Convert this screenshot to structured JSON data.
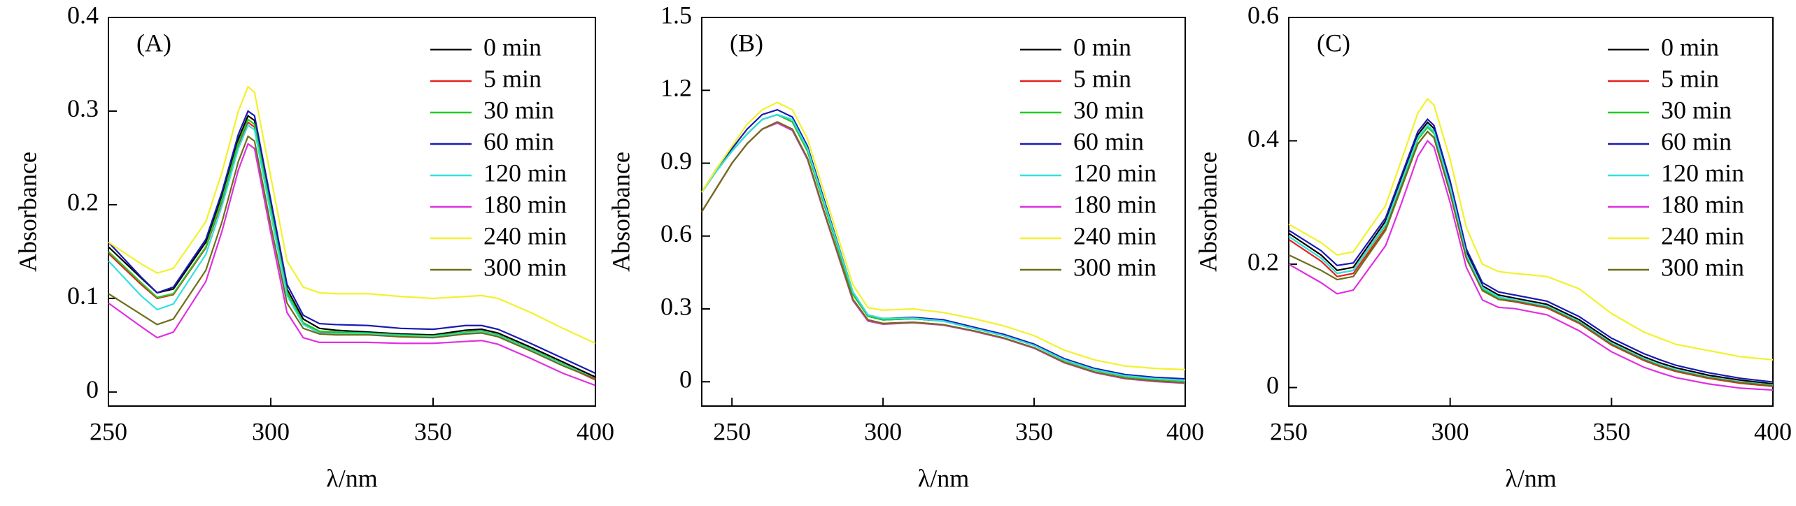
{
  "chart_data": [
    {
      "type": "line",
      "title": "(A)",
      "xlabel": "λ/nm",
      "ylabel": "Absorbance",
      "xlim": [
        250,
        400
      ],
      "xticks": [
        250,
        300,
        350,
        400
      ],
      "ylim": [
        -0.015,
        0.4
      ],
      "yticks": [
        0,
        0.1,
        0.2,
        0.3,
        0.4
      ],
      "x": [
        250,
        260,
        265,
        270,
        280,
        285,
        290,
        293,
        295,
        300,
        305,
        310,
        315,
        320,
        330,
        340,
        350,
        360,
        365,
        370,
        380,
        390,
        400
      ],
      "series": [
        {
          "name": "0 min",
          "color": "#000000",
          "values": [
            0.155,
            0.122,
            0.106,
            0.11,
            0.16,
            0.21,
            0.27,
            0.295,
            0.29,
            0.2,
            0.11,
            0.078,
            0.068,
            0.066,
            0.064,
            0.062,
            0.061,
            0.066,
            0.067,
            0.063,
            0.048,
            0.032,
            0.016
          ]
        },
        {
          "name": "5 min",
          "color": "#e62020",
          "values": [
            0.148,
            0.115,
            0.1,
            0.104,
            0.154,
            0.204,
            0.263,
            0.288,
            0.283,
            0.193,
            0.105,
            0.073,
            0.064,
            0.063,
            0.062,
            0.06,
            0.059,
            0.063,
            0.064,
            0.06,
            0.045,
            0.029,
            0.013
          ]
        },
        {
          "name": "30 min",
          "color": "#22cc22",
          "values": [
            0.15,
            0.117,
            0.101,
            0.105,
            0.155,
            0.206,
            0.266,
            0.291,
            0.286,
            0.196,
            0.107,
            0.074,
            0.065,
            0.064,
            0.063,
            0.061,
            0.06,
            0.064,
            0.065,
            0.061,
            0.046,
            0.03,
            0.014
          ]
        },
        {
          "name": "60 min",
          "color": "#1a1ab4",
          "values": [
            0.16,
            0.123,
            0.106,
            0.112,
            0.163,
            0.214,
            0.275,
            0.3,
            0.295,
            0.205,
            0.115,
            0.082,
            0.073,
            0.072,
            0.071,
            0.068,
            0.067,
            0.071,
            0.071,
            0.067,
            0.052,
            0.036,
            0.02
          ]
        },
        {
          "name": "120 min",
          "color": "#33e0e0",
          "values": [
            0.14,
            0.103,
            0.088,
            0.094,
            0.147,
            0.199,
            0.26,
            0.285,
            0.28,
            0.19,
            0.103,
            0.072,
            0.063,
            0.062,
            0.062,
            0.06,
            0.059,
            0.063,
            0.064,
            0.06,
            0.045,
            0.029,
            0.014
          ]
        },
        {
          "name": "180 min",
          "color": "#e030e0",
          "values": [
            0.095,
            0.07,
            0.058,
            0.064,
            0.118,
            0.172,
            0.237,
            0.265,
            0.26,
            0.17,
            0.085,
            0.058,
            0.053,
            0.053,
            0.053,
            0.052,
            0.052,
            0.054,
            0.055,
            0.051,
            0.036,
            0.02,
            0.007
          ]
        },
        {
          "name": "240 min",
          "color": "#f2f22a",
          "values": [
            0.16,
            0.137,
            0.127,
            0.132,
            0.182,
            0.235,
            0.3,
            0.326,
            0.32,
            0.23,
            0.14,
            0.112,
            0.106,
            0.105,
            0.105,
            0.102,
            0.1,
            0.102,
            0.103,
            0.1,
            0.085,
            0.068,
            0.052
          ]
        },
        {
          "name": "300 min",
          "color": "#6e6e18",
          "values": [
            0.105,
            0.083,
            0.072,
            0.078,
            0.13,
            0.182,
            0.246,
            0.273,
            0.268,
            0.178,
            0.095,
            0.068,
            0.062,
            0.061,
            0.061,
            0.059,
            0.058,
            0.062,
            0.063,
            0.059,
            0.044,
            0.028,
            0.014
          ]
        }
      ]
    },
    {
      "type": "line",
      "title": "(B)",
      "xlabel": "λ/nm",
      "ylabel": "Absorbance",
      "xlim": [
        240,
        400
      ],
      "xticks": [
        250,
        300,
        350,
        400
      ],
      "ylim": [
        -0.1,
        1.5
      ],
      "yticks": [
        0,
        0.3,
        0.6,
        0.9,
        1.2,
        1.5
      ],
      "x": [
        240,
        245,
        250,
        255,
        260,
        265,
        270,
        275,
        280,
        290,
        295,
        300,
        310,
        320,
        330,
        340,
        350,
        360,
        370,
        380,
        390,
        400
      ],
      "series": [
        {
          "name": "0 min",
          "color": "#000000",
          "values": [
            0.78,
            0.87,
            0.95,
            1.02,
            1.08,
            1.1,
            1.07,
            0.95,
            0.75,
            0.36,
            0.27,
            0.255,
            0.26,
            0.25,
            0.22,
            0.19,
            0.15,
            0.09,
            0.05,
            0.025,
            0.012,
            0.005
          ]
        },
        {
          "name": "5 min",
          "color": "#e62020",
          "values": [
            0.7,
            0.8,
            0.9,
            0.98,
            1.04,
            1.07,
            1.04,
            0.92,
            0.72,
            0.34,
            0.255,
            0.24,
            0.245,
            0.235,
            0.21,
            0.18,
            0.14,
            0.08,
            0.04,
            0.015,
            0.003,
            -0.005
          ]
        },
        {
          "name": "30 min",
          "color": "#22cc22",
          "values": [
            0.78,
            0.87,
            0.95,
            1.02,
            1.08,
            1.1,
            1.07,
            0.95,
            0.75,
            0.36,
            0.27,
            0.255,
            0.26,
            0.25,
            0.22,
            0.19,
            0.15,
            0.088,
            0.048,
            0.022,
            0.01,
            0.003
          ]
        },
        {
          "name": "60 min",
          "color": "#1a1ab4",
          "values": [
            0.78,
            0.88,
            0.96,
            1.04,
            1.1,
            1.12,
            1.09,
            0.97,
            0.77,
            0.37,
            0.275,
            0.26,
            0.265,
            0.255,
            0.225,
            0.195,
            0.155,
            0.095,
            0.055,
            0.03,
            0.018,
            0.012
          ]
        },
        {
          "name": "120 min",
          "color": "#33e0e0",
          "values": [
            0.78,
            0.87,
            0.95,
            1.02,
            1.08,
            1.1,
            1.08,
            0.96,
            0.76,
            0.37,
            0.275,
            0.26,
            0.262,
            0.25,
            0.22,
            0.19,
            0.15,
            0.09,
            0.05,
            0.025,
            0.013,
            0.006
          ]
        },
        {
          "name": "180 min",
          "color": "#e030e0",
          "values": [
            0.7,
            0.8,
            0.9,
            0.98,
            1.04,
            1.065,
            1.035,
            0.915,
            0.715,
            0.335,
            0.25,
            0.237,
            0.243,
            0.233,
            0.208,
            0.178,
            0.138,
            0.078,
            0.038,
            0.013,
            0.001,
            -0.006
          ]
        },
        {
          "name": "240 min",
          "color": "#f2f22a",
          "values": [
            0.78,
            0.88,
            0.97,
            1.06,
            1.12,
            1.15,
            1.12,
            1.0,
            0.8,
            0.4,
            0.305,
            0.295,
            0.3,
            0.285,
            0.26,
            0.23,
            0.19,
            0.13,
            0.09,
            0.065,
            0.055,
            0.05
          ]
        },
        {
          "name": "300 min",
          "color": "#6e6e18",
          "values": [
            0.7,
            0.8,
            0.9,
            0.98,
            1.04,
            1.07,
            1.04,
            0.92,
            0.72,
            0.34,
            0.255,
            0.24,
            0.245,
            0.235,
            0.21,
            0.18,
            0.14,
            0.08,
            0.04,
            0.015,
            0.004,
            -0.004
          ]
        }
      ]
    },
    {
      "type": "line",
      "title": "(C)",
      "xlabel": "λ/nm",
      "ylabel": "Absorbance",
      "xlim": [
        250,
        400
      ],
      "xticks": [
        250,
        300,
        350,
        400
      ],
      "ylim": [
        -0.03,
        0.6
      ],
      "yticks": [
        0,
        0.2,
        0.4,
        0.6
      ],
      "x": [
        250,
        260,
        265,
        270,
        280,
        285,
        290,
        293,
        295,
        300,
        305,
        310,
        315,
        320,
        330,
        340,
        350,
        360,
        365,
        370,
        380,
        390,
        400
      ],
      "series": [
        {
          "name": "0 min",
          "color": "#000000",
          "values": [
            0.25,
            0.215,
            0.19,
            0.195,
            0.27,
            0.34,
            0.41,
            0.43,
            0.42,
            0.33,
            0.22,
            0.165,
            0.15,
            0.145,
            0.135,
            0.11,
            0.075,
            0.05,
            0.04,
            0.032,
            0.02,
            0.012,
            0.006
          ]
        },
        {
          "name": "5 min",
          "color": "#e62020",
          "values": [
            0.24,
            0.205,
            0.18,
            0.185,
            0.258,
            0.328,
            0.395,
            0.415,
            0.405,
            0.315,
            0.21,
            0.158,
            0.143,
            0.139,
            0.129,
            0.104,
            0.069,
            0.044,
            0.034,
            0.026,
            0.015,
            0.007,
            0.002
          ]
        },
        {
          "name": "30 min",
          "color": "#22cc22",
          "values": [
            0.245,
            0.21,
            0.185,
            0.19,
            0.263,
            0.333,
            0.402,
            0.422,
            0.412,
            0.322,
            0.214,
            0.16,
            0.146,
            0.141,
            0.131,
            0.106,
            0.071,
            0.046,
            0.036,
            0.028,
            0.017,
            0.009,
            0.004
          ]
        },
        {
          "name": "60 min",
          "color": "#1a1ab4",
          "values": [
            0.255,
            0.222,
            0.198,
            0.202,
            0.275,
            0.345,
            0.415,
            0.435,
            0.425,
            0.335,
            0.225,
            0.17,
            0.155,
            0.15,
            0.14,
            0.115,
            0.08,
            0.055,
            0.045,
            0.036,
            0.024,
            0.015,
            0.009
          ]
        },
        {
          "name": "120 min",
          "color": "#33e0e0",
          "values": [
            0.245,
            0.21,
            0.185,
            0.19,
            0.265,
            0.335,
            0.405,
            0.425,
            0.415,
            0.325,
            0.216,
            0.162,
            0.147,
            0.142,
            0.132,
            0.107,
            0.072,
            0.047,
            0.037,
            0.029,
            0.017,
            0.009,
            0.004
          ]
        },
        {
          "name": "180 min",
          "color": "#e030e0",
          "values": [
            0.2,
            0.17,
            0.152,
            0.158,
            0.23,
            0.3,
            0.375,
            0.4,
            0.39,
            0.3,
            0.195,
            0.142,
            0.13,
            0.128,
            0.118,
            0.092,
            0.058,
            0.033,
            0.024,
            0.016,
            0.006,
            -0.001,
            -0.004
          ]
        },
        {
          "name": "240 min",
          "color": "#f2f22a",
          "values": [
            0.265,
            0.235,
            0.215,
            0.22,
            0.295,
            0.37,
            0.445,
            0.468,
            0.458,
            0.37,
            0.26,
            0.2,
            0.188,
            0.185,
            0.18,
            0.16,
            0.12,
            0.09,
            0.08,
            0.07,
            0.06,
            0.05,
            0.045
          ]
        },
        {
          "name": "300 min",
          "color": "#6e6e18",
          "values": [
            0.215,
            0.19,
            0.175,
            0.18,
            0.255,
            0.325,
            0.395,
            0.415,
            0.405,
            0.315,
            0.21,
            0.157,
            0.143,
            0.14,
            0.13,
            0.105,
            0.07,
            0.045,
            0.035,
            0.027,
            0.016,
            0.008,
            0.003
          ]
        }
      ]
    }
  ]
}
